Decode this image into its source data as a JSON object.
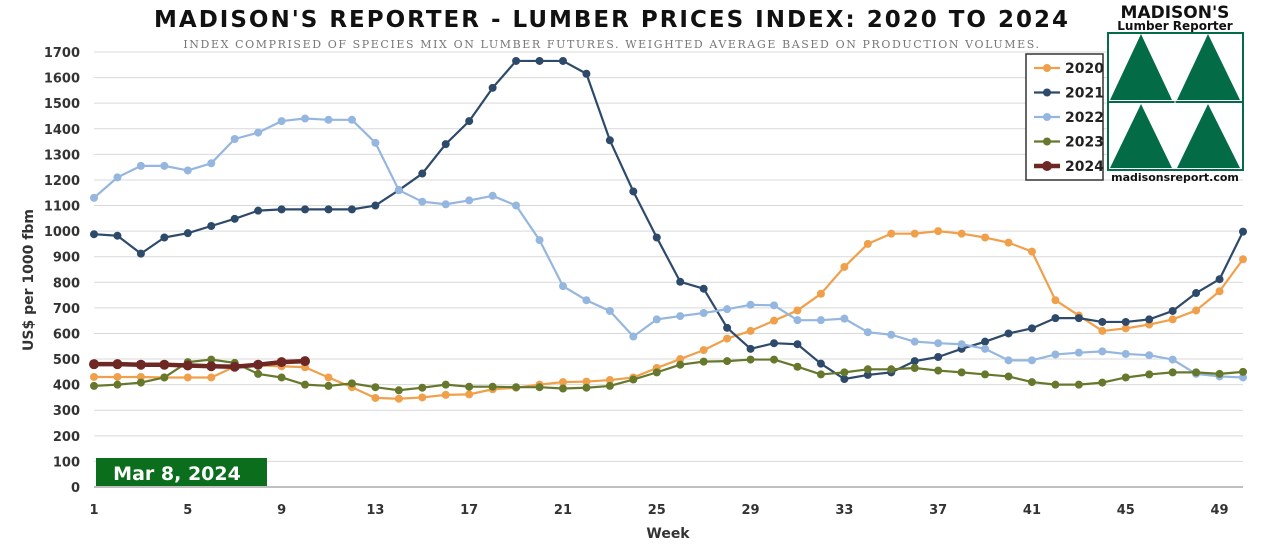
{
  "chart_data": {
    "type": "line",
    "title": "MADISON'S REPORTER - LUMBER PRICES INDEX: 2020 TO 2024",
    "subtitle": "INDEX COMPRISED OF SPECIES MIX ON LUMBER FUTURES. WEIGHTED AVERAGE BASED ON PRODUCTION VOLUMES.",
    "xlabel": "Week",
    "ylabel": "US$ per 1000 fbm",
    "ylim": [
      0,
      1700
    ],
    "xlim": [
      1,
      50
    ],
    "yticks": [
      0,
      100,
      200,
      300,
      400,
      500,
      600,
      700,
      800,
      900,
      1000,
      1100,
      1200,
      1300,
      1400,
      1500,
      1600,
      1700
    ],
    "xticks": [
      1,
      5,
      9,
      13,
      17,
      21,
      25,
      29,
      33,
      37,
      41,
      45,
      49
    ],
    "grid": "horizontal",
    "legend_position": "top-right",
    "annotation": "Mar 8, 2024",
    "series": [
      {
        "name": "2020",
        "color": "#f0a04b",
        "values": [
          430,
          430,
          430,
          428,
          428,
          428,
          470,
          475,
          472,
          468,
          428,
          390,
          348,
          345,
          350,
          360,
          362,
          382,
          388,
          400,
          410,
          412,
          418,
          428,
          465,
          500,
          535,
          580,
          610,
          650,
          690,
          755,
          860,
          950,
          990,
          990,
          1000,
          990,
          975,
          955,
          920,
          730,
          670,
          610,
          620,
          635,
          655,
          690,
          765,
          890
        ]
      },
      {
        "name": "2021",
        "color": "#2e4a6b",
        "values": [
          988,
          982,
          912,
          975,
          992,
          1020,
          1048,
          1080,
          1085,
          1085,
          1085,
          1085,
          1100,
          1160,
          1225,
          1340,
          1430,
          1560,
          1665,
          1665,
          1665,
          1615,
          1355,
          1155,
          975,
          802,
          775,
          622,
          540,
          562,
          558,
          482,
          422,
          438,
          448,
          492,
          508,
          540,
          568,
          600,
          620,
          660,
          660,
          645,
          645,
          655,
          688,
          758,
          812,
          998
        ]
      },
      {
        "name": "2022",
        "color": "#95b6df",
        "values": [
          1130,
          1210,
          1255,
          1255,
          1237,
          1265,
          1360,
          1385,
          1430,
          1440,
          1435,
          1435,
          1345,
          1160,
          1115,
          1105,
          1120,
          1138,
          1100,
          965,
          785,
          730,
          688,
          588,
          655,
          668,
          680,
          695,
          712,
          710,
          652,
          652,
          658,
          605,
          595,
          568,
          562,
          558,
          540,
          495,
          495,
          518,
          525,
          530,
          520,
          515,
          498,
          442,
          432,
          428
        ]
      },
      {
        "name": "2023",
        "color": "#66782c",
        "values": [
          395,
          400,
          408,
          428,
          488,
          498,
          485,
          442,
          428,
          400,
          395,
          405,
          390,
          378,
          388,
          400,
          392,
          392,
          390,
          390,
          385,
          388,
          395,
          420,
          448,
          478,
          490,
          492,
          498,
          498,
          470,
          440,
          448,
          460,
          460,
          465,
          455,
          448,
          440,
          432,
          410,
          400,
          400,
          408,
          428,
          440,
          448,
          448,
          442,
          450
        ]
      },
      {
        "name": "2024",
        "color": "#6e2824",
        "values": [
          480,
          480,
          478,
          478,
          475,
          472,
          470,
          478,
          488,
          492
        ]
      }
    ]
  },
  "logo": {
    "title": "MADISON'S",
    "subtitle": "Lumber Reporter",
    "url": "madisonsreport.com",
    "color": "#036c47"
  }
}
